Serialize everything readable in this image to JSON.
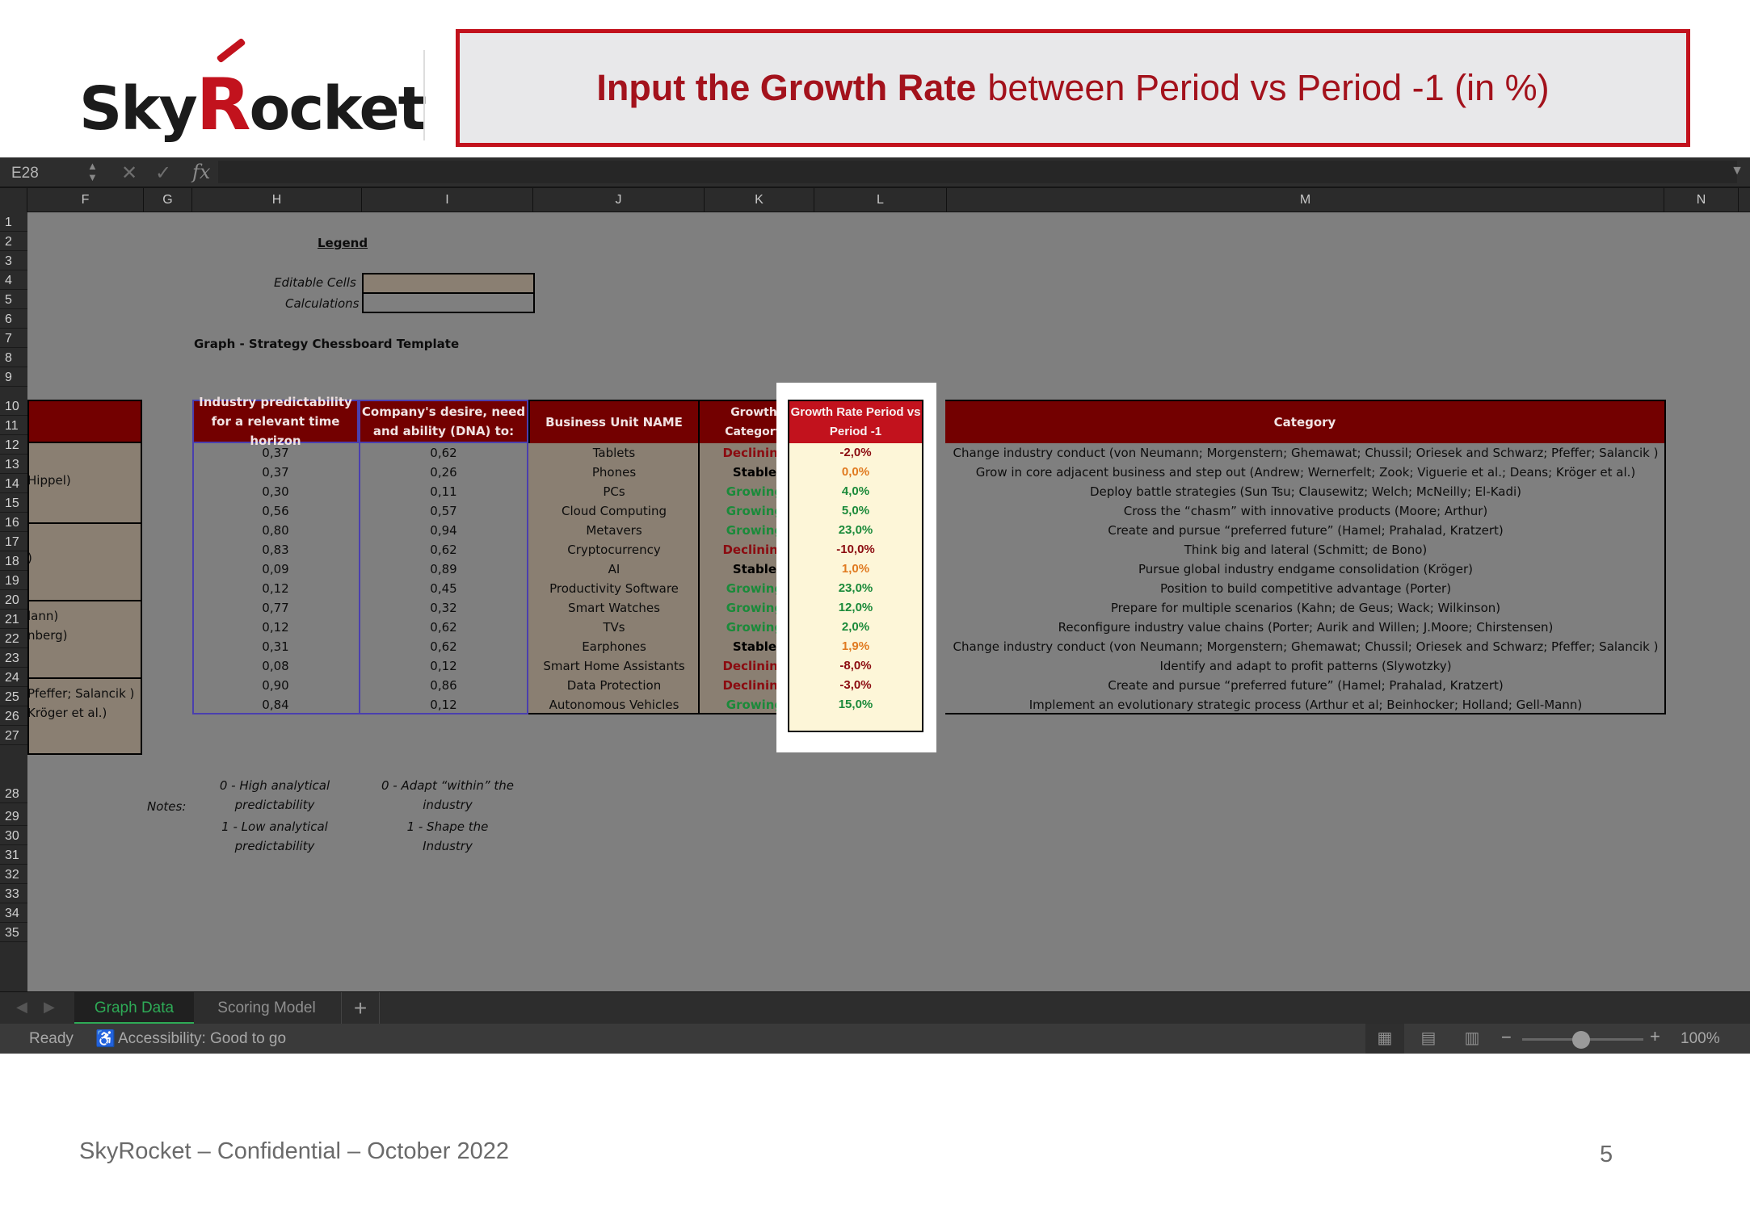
{
  "logo": {
    "part1": "Sky",
    "part2": "R",
    "part3": "ocket"
  },
  "title": {
    "bold": "Input the Growth Rate",
    "rest": "between Period vs Period -1 (in %)"
  },
  "formula_bar": {
    "name_box": "E28",
    "fx": "fx"
  },
  "columns": [
    "F",
    "G",
    "H",
    "I",
    "J",
    "K",
    "L",
    "M",
    "N"
  ],
  "rows": [
    "1",
    "2",
    "3",
    "4",
    "5",
    "6",
    "7",
    "8",
    "9",
    "10",
    "11",
    "12",
    "13",
    "14",
    "15",
    "16",
    "17",
    "18",
    "19",
    "20",
    "21",
    "22",
    "23",
    "24",
    "25",
    "26",
    "27",
    "28",
    "29",
    "30",
    "31",
    "32",
    "33",
    "34",
    "35"
  ],
  "legend": {
    "title": "Legend",
    "editable": "Editable Cells",
    "calculations": "Calculations"
  },
  "graph_title": "Graph - Strategy Chessboard Template",
  "left_col_fragments": [
    "Hippel)",
    ")",
    "lann)",
    "nberg)",
    "Pfeffer; Salancik )",
    "Kröger et al.)"
  ],
  "table": {
    "headers": {
      "h": "Industry predictability for a relevant time horizon",
      "i": "Company's desire, need and ability (DNA) to:",
      "j": "Business Unit NAME",
      "k": "Growth Category",
      "l": "Growth Rate Period vs Period -1",
      "m": "Category"
    },
    "rows": [
      {
        "h": "0,37",
        "i": "0,62",
        "j": "Tablets",
        "k": "Declining",
        "l": "-2,0%",
        "m": "Change industry conduct (von Neumann; Morgenstern; Ghemawat; Chussil; Oriesek and Schwarz; Pfeffer; Salancik )"
      },
      {
        "h": "0,37",
        "i": "0,26",
        "j": "Phones",
        "k": "Stable",
        "l": "0,0%",
        "m": "Grow in core adjacent business and step out (Andrew; Wernerfelt; Zook; Viguerie et al.; Deans; Kröger et al.)"
      },
      {
        "h": "0,30",
        "i": "0,11",
        "j": "PCs",
        "k": "Growing",
        "l": "4,0%",
        "m": "Deploy battle strategies (Sun Tsu; Clausewitz; Welch; McNeilly; El-Kadi)"
      },
      {
        "h": "0,56",
        "i": "0,57",
        "j": "Cloud Computing",
        "k": "Growing",
        "l": "5,0%",
        "m": "Cross the “chasm” with innovative products (Moore; Arthur)"
      },
      {
        "h": "0,80",
        "i": "0,94",
        "j": "Metavers",
        "k": "Growing",
        "l": "23,0%",
        "m": "Create and pursue “preferred future” (Hamel; Prahalad, Kratzert)"
      },
      {
        "h": "0,83",
        "i": "0,62",
        "j": "Cryptocurrency",
        "k": "Declining",
        "l": "-10,0%",
        "m": "Think big and lateral (Schmitt; de Bono)"
      },
      {
        "h": "0,09",
        "i": "0,89",
        "j": "AI",
        "k": "Stable",
        "l": "1,0%",
        "m": "Pursue global industry endgame consolidation (Kröger)"
      },
      {
        "h": "0,12",
        "i": "0,45",
        "j": "Productivity Software",
        "k": "Growing",
        "l": "23,0%",
        "m": "Position to build competitive advantage (Porter)"
      },
      {
        "h": "0,77",
        "i": "0,32",
        "j": "Smart Watches",
        "k": "Growing",
        "l": "12,0%",
        "m": "Prepare for multiple scenarios (Kahn; de Geus; Wack; Wilkinson)"
      },
      {
        "h": "0,12",
        "i": "0,62",
        "j": "TVs",
        "k": "Growing",
        "l": "2,0%",
        "m": "Reconfigure industry value chains (Porter; Aurik and Willen; J.Moore; Chirstensen)"
      },
      {
        "h": "0,31",
        "i": "0,62",
        "j": "Earphones",
        "k": "Stable",
        "l": "1,9%",
        "m": "Change industry conduct (von Neumann; Morgenstern; Ghemawat; Chussil; Oriesek and Schwarz; Pfeffer; Salancik )"
      },
      {
        "h": "0,08",
        "i": "0,12",
        "j": "Smart Home Assistants",
        "k": "Declining",
        "l": "-8,0%",
        "m": "Identify and adapt to profit patterns (Slywotzky)"
      },
      {
        "h": "0,90",
        "i": "0,86",
        "j": "Data Protection",
        "k": "Declining",
        "l": "-3,0%",
        "m": "Create and pursue “preferred future” (Hamel; Prahalad, Kratzert)"
      },
      {
        "h": "0,84",
        "i": "0,12",
        "j": "Autonomous Vehicles",
        "k": "Growing",
        "l": "15,0%",
        "m": "Implement an evolutionary strategic process (Arthur et al; Beinhocker; Holland; Gell-Mann)"
      }
    ]
  },
  "notes": {
    "label": "Notes:",
    "h1a": "0 - High analytical",
    "h1b": "predictability",
    "h2a": "1 - Low analytical",
    "h2b": "predictability",
    "i1a": "0 - Adapt “within” the",
    "i1b": "industry",
    "i2a": "1 - Shape the",
    "i2b": "Industry"
  },
  "sheet_tabs": {
    "active": "Graph Data",
    "other": "Scoring Model",
    "add": "+"
  },
  "status": {
    "ready": "Ready",
    "accessibility": "Accessibility: Good to go",
    "zoom": "100%",
    "zoom_level_percent": 100
  },
  "footer": {
    "left": "SkyRocket – Confidential – October 2022",
    "page": "5"
  },
  "colors": {
    "brand_red": "#c2121d",
    "header_dark_red": "#730000",
    "growing": "#1b8a3a",
    "declining": "#8b0b10",
    "stable_orange": "#e07a20"
  }
}
